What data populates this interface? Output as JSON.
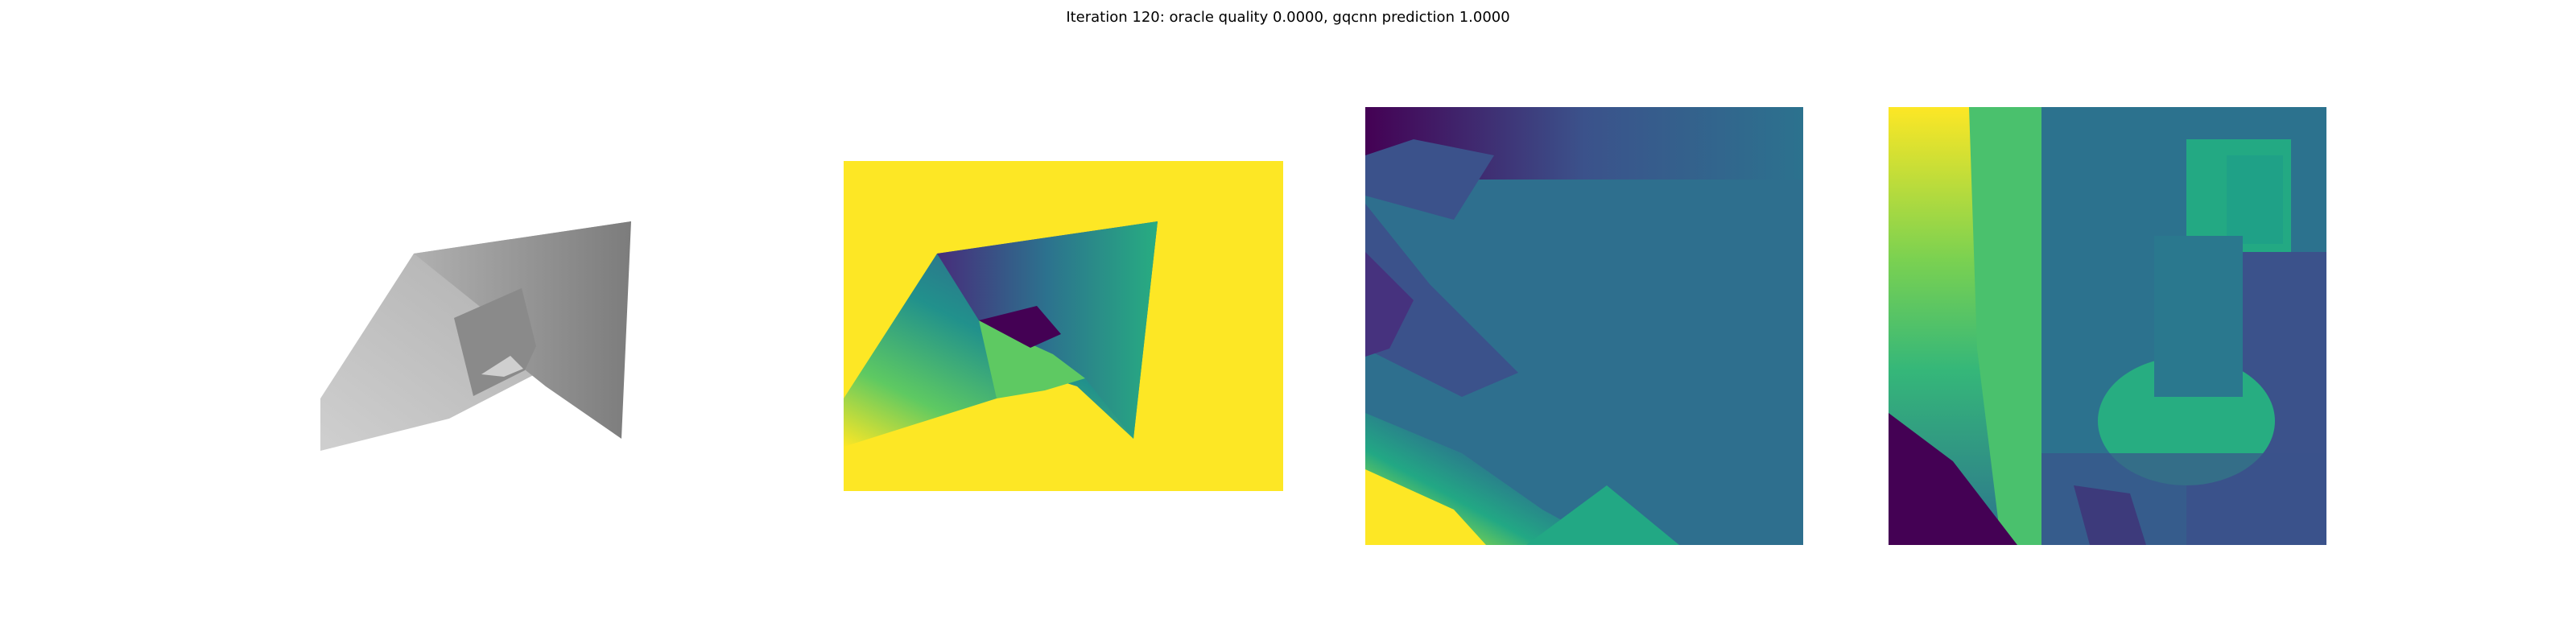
{
  "figure": {
    "title": "Iteration 120: oracle quality 0.0000, gqcnn prediction 1.0000"
  },
  "panels": [
    {
      "name": "grasp-render",
      "kind": "grayscale-render"
    },
    {
      "name": "depth-image",
      "kind": "viridis-depth"
    },
    {
      "name": "depth-crop-a",
      "kind": "viridis-crop"
    },
    {
      "name": "depth-crop-b",
      "kind": "viridis-crop"
    }
  ],
  "colors": {
    "background": "#ffffff",
    "viridis_yellow": "#fde725",
    "viridis_teal": "#2a788e",
    "viridis_green": "#22a884",
    "viridis_lime": "#7ad151",
    "viridis_blue": "#3b528b",
    "viridis_purple": "#440154",
    "gray_light": "#c8c8c8",
    "gray_mid": "#a6a6a6",
    "gray_dark": "#7e7e7e"
  }
}
